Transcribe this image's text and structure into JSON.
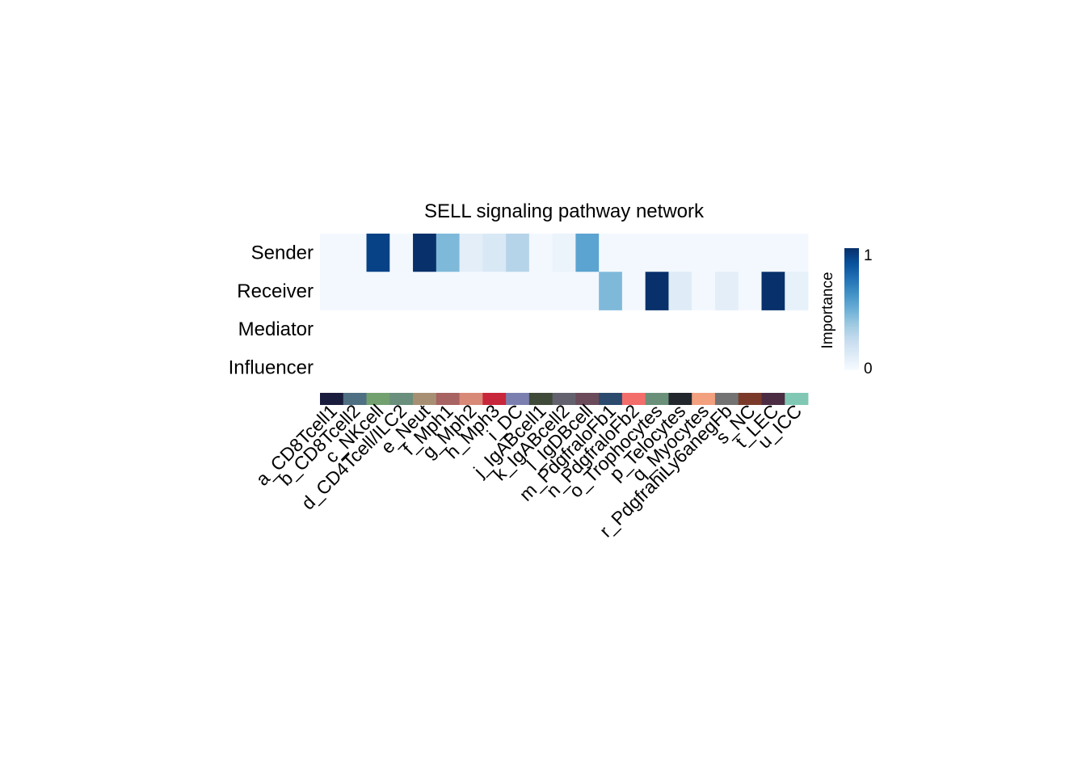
{
  "chart_data": {
    "type": "heatmap",
    "title": "SELL signaling pathway network",
    "rows": [
      "Sender",
      "Receiver",
      "Mediator",
      "Influencer"
    ],
    "columns": [
      "a_CD8Tcell1",
      "b_CD8Tcell2",
      "c_NKcell",
      "d_CD4Tcell/ILC2",
      "e_Neut",
      "f_Mph1",
      "g_Mph2",
      "h_Mph3",
      "i_DC",
      "j_IgABcell1",
      "k_IgABcell2",
      "l_IgDBcell",
      "m_PdgfraloFb1",
      "n_PdgfraloFb2",
      "o_Trophocytes",
      "p_Telocytes",
      "q_Myocytes",
      "r_PdgfrahiLy6anegFb",
      "s_NC",
      "t_LEC",
      "u_ICC"
    ],
    "values": [
      [
        0.02,
        0.02,
        0.93,
        0.02,
        1.0,
        0.45,
        0.1,
        0.15,
        0.3,
        0.02,
        0.06,
        0.55,
        0.02,
        0.02,
        0.02,
        0.02,
        0.02,
        0.02,
        0.02,
        0.02,
        0.02
      ],
      [
        0.02,
        0.02,
        0.02,
        0.02,
        0.02,
        0.02,
        0.02,
        0.02,
        0.02,
        0.02,
        0.02,
        0.02,
        0.45,
        0.02,
        1.0,
        0.12,
        0.02,
        0.1,
        0.02,
        1.0,
        0.08
      ],
      [
        null,
        null,
        null,
        null,
        null,
        null,
        null,
        null,
        null,
        null,
        null,
        null,
        null,
        null,
        null,
        null,
        null,
        null,
        null,
        null,
        null
      ],
      [
        null,
        null,
        null,
        null,
        null,
        null,
        null,
        null,
        null,
        null,
        null,
        null,
        null,
        null,
        null,
        null,
        null,
        null,
        null,
        null,
        null
      ]
    ],
    "column_colors": [
      "#1a1c3d",
      "#4f6f82",
      "#73a06f",
      "#6a8f7c",
      "#a78f74",
      "#a86363",
      "#d98977",
      "#c8263a",
      "#7b7fb0",
      "#3f4a38",
      "#63616d",
      "#6b4a5a",
      "#2b4a6e",
      "#f36d6b",
      "#6a9079",
      "#21272c",
      "#f2a07e",
      "#737373",
      "#7b3a29",
      "#4b2c42",
      "#80c8b4"
    ],
    "colorbar": {
      "label": "Importance",
      "min_label": "0",
      "max_label": "1",
      "colors": [
        "#f7fbff",
        "#deebf7",
        "#c6dbef",
        "#9ecae1",
        "#6baed6",
        "#4292c6",
        "#2171b5",
        "#08519c",
        "#08306b"
      ]
    }
  }
}
